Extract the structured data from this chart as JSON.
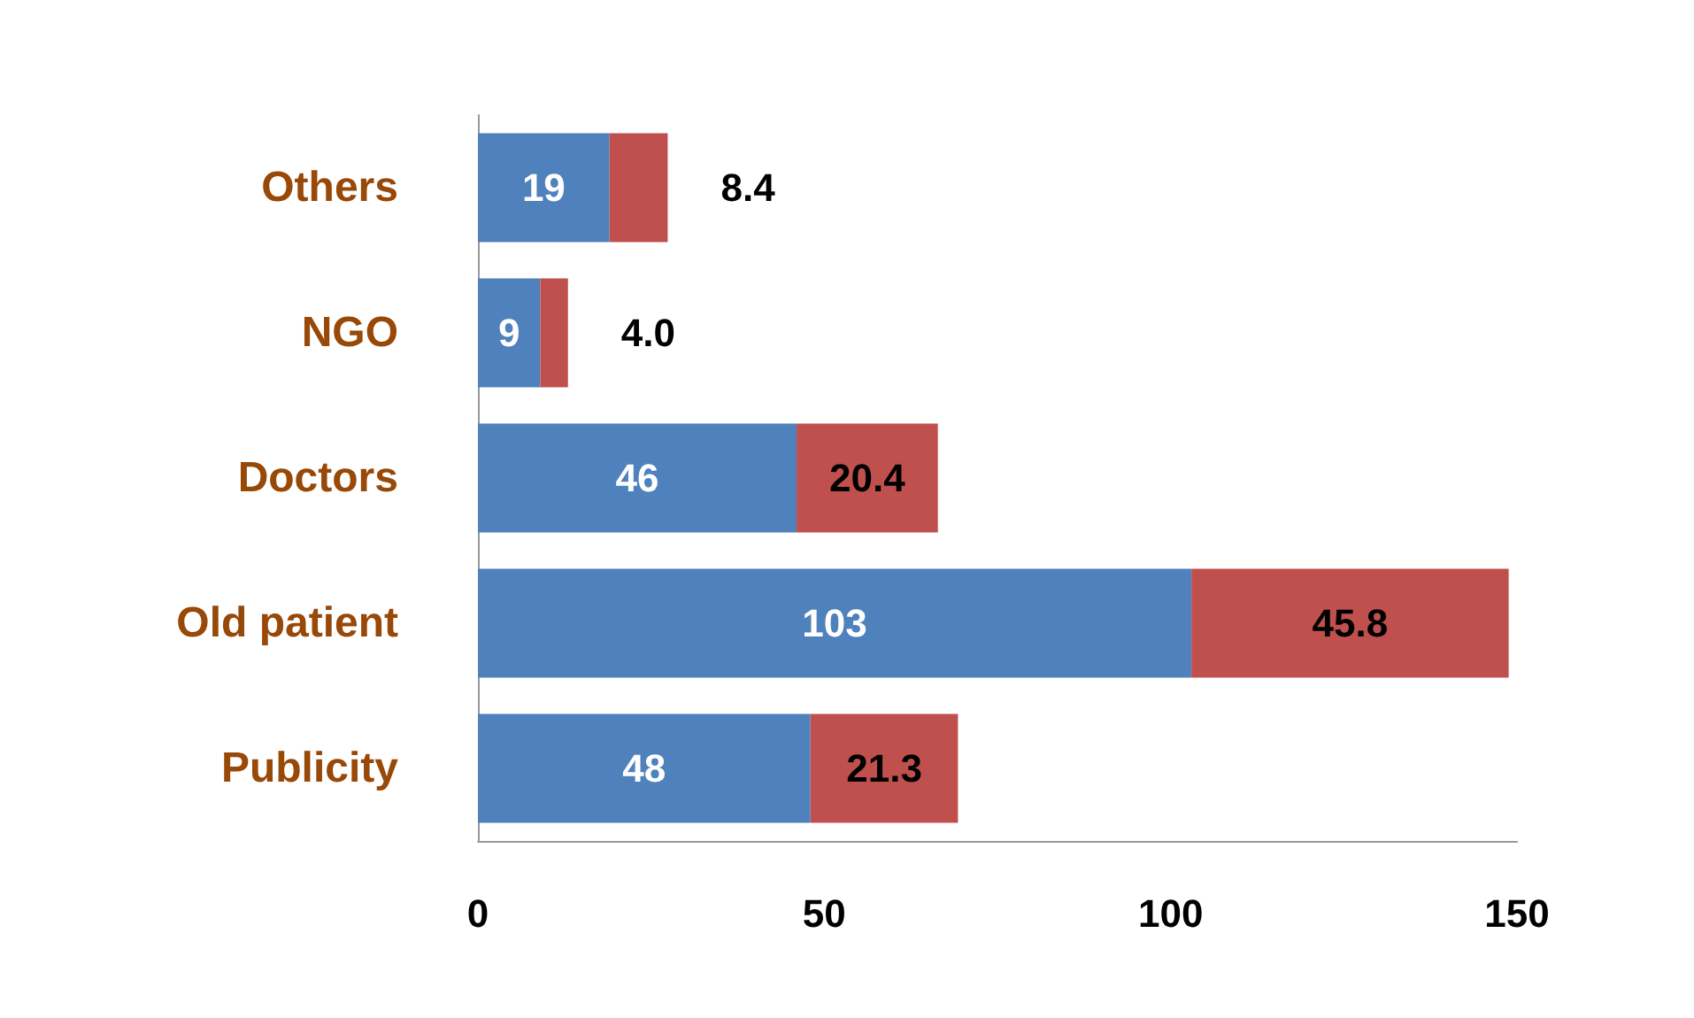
{
  "chart_data": {
    "type": "bar",
    "orientation": "horizontal",
    "stacked": true,
    "categories": [
      "Others",
      "NGO",
      "Doctors",
      "Old patient",
      "Publicity"
    ],
    "series": [
      {
        "color": "#4f81bd",
        "values": [
          19,
          9,
          46,
          103,
          48
        ],
        "value_labels": [
          "19",
          "9",
          "46",
          "103",
          "48"
        ]
      },
      {
        "color": "#c0504d",
        "values": [
          8.4,
          4.0,
          20.4,
          45.8,
          21.3
        ],
        "value_labels": [
          "8.4",
          "4.0",
          "20.4",
          "45.8",
          "21.3"
        ]
      }
    ],
    "xlim": [
      0,
      150
    ],
    "xticks": [
      0,
      50,
      100,
      150
    ],
    "grid": false
  }
}
